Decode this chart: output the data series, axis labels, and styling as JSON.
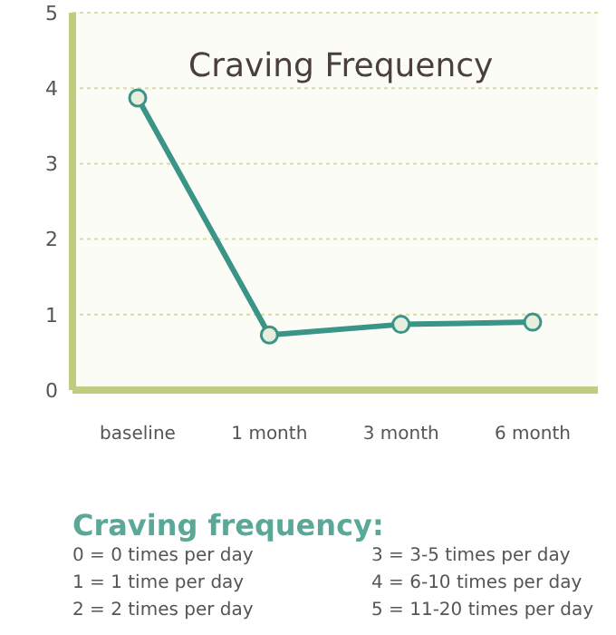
{
  "chart_data": {
    "type": "line",
    "title": "Craving Frequency",
    "categories": [
      "baseline",
      "1 month",
      "3 month",
      "6 month"
    ],
    "series": [
      {
        "color": "#3a9488",
        "values": [
          3.87,
          0.73,
          0.87,
          0.9
        ]
      }
    ],
    "ylim": [
      0,
      5
    ],
    "yticks": [
      0,
      1,
      2,
      3,
      4,
      5
    ],
    "grid": "y",
    "marker": "circle",
    "line_style": "solid",
    "legend": false,
    "annotations": [
      "Craving frequency:",
      "0 = 0 times per day",
      "1 = 1 time per day",
      "2 = 2 times per day",
      "3 = 3-5 times per day",
      "4 = 6-10 times per day",
      "5 = 11-20 times per day"
    ]
  }
}
